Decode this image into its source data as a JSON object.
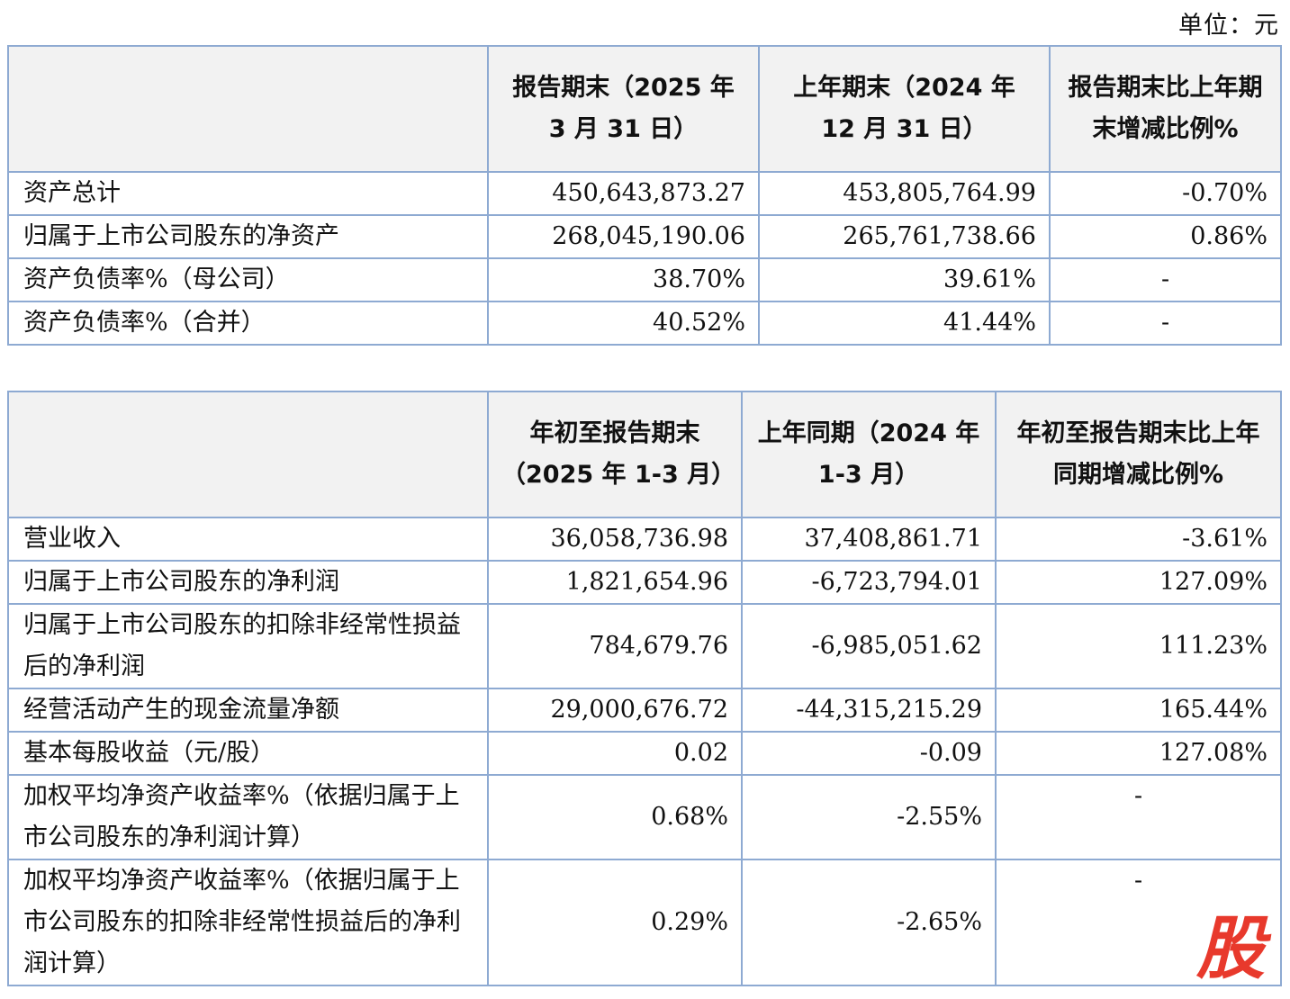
{
  "unit_label": "单位：元",
  "table1": {
    "headers": [
      "",
      "报告期末（2025 年 3 月 31 日）",
      "上年期末（2024 年 12 月 31 日）",
      "报告期末比上年期末增减比例%"
    ],
    "rows": [
      {
        "label": "资产总计",
        "current": "450,643,873.27",
        "previous": "453,805,764.99",
        "change": "-0.70%"
      },
      {
        "label": "归属于上市公司股东的净资产",
        "current": "268,045,190.06",
        "previous": "265,761,738.66",
        "change": "0.86%"
      },
      {
        "label": "资产负债率%（母公司）",
        "current": "38.70%",
        "previous": "39.61%",
        "change": "-"
      },
      {
        "label": "资产负债率%（合并）",
        "current": "40.52%",
        "previous": "41.44%",
        "change": "-"
      }
    ]
  },
  "table2": {
    "headers": [
      "",
      "年初至报告期末（2025 年 1-3 月）",
      "上年同期（2024 年 1-3 月）",
      "年初至报告期末比上年同期增减比例%"
    ],
    "rows": [
      {
        "label": "营业收入",
        "current": "36,058,736.98",
        "previous": "37,408,861.71",
        "change": "-3.61%"
      },
      {
        "label": "归属于上市公司股东的净利润",
        "current": "1,821,654.96",
        "previous": "-6,723,794.01",
        "change": "127.09%"
      },
      {
        "label": "归属于上市公司股东的扣除非经常性损益后的净利润",
        "current": "784,679.76",
        "previous": "-6,985,051.62",
        "change": "111.23%"
      },
      {
        "label": "经营活动产生的现金流量净额",
        "current": "29,000,676.72",
        "previous": "-44,315,215.29",
        "change": "165.44%"
      },
      {
        "label": "基本每股收益（元/股）",
        "current": "0.02",
        "previous": "-0.09",
        "change": "127.08%"
      },
      {
        "label": "加权平均净资产收益率%（依据归属于上市公司股东的净利润计算）",
        "current": "0.68%",
        "previous": "-2.55%",
        "change": "-"
      },
      {
        "label": "加权平均净资产收益率%（依据归属于上市公司股东的扣除非经常性损益后的净利润计算）",
        "current": "0.29%",
        "previous": "-2.65%",
        "change": "-"
      }
    ]
  },
  "watermark": {
    "text": "股",
    "color": "#e8392c"
  }
}
